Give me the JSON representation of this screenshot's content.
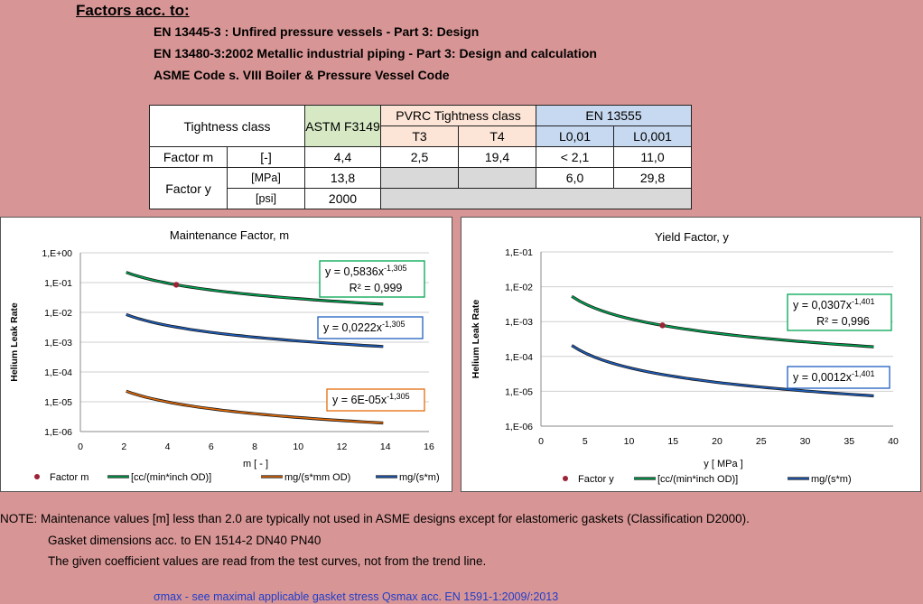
{
  "header": {
    "title": "Factors acc. to:",
    "standards": [
      "EN 13445-3 : Unfired pressure vessels - Part 3: Design",
      "EN 13480-3:2002 Metallic industrial piping - Part 3: Design and calculation",
      "ASME Code s. VIII Boiler & Pressure Vessel Code"
    ]
  },
  "table": {
    "tightness_class": "Tightness class",
    "astm": "ASTM F3149",
    "pvrc": "PVRC Tightness class",
    "en13555": "EN 13555",
    "t3": "T3",
    "t4": "T4",
    "l001": "L0,01",
    "l0001": "L0,001",
    "factor_m": "Factor m",
    "unit_dash": "[-]",
    "factor_y": "Factor y",
    "unit_mpa": "[MPa]",
    "unit_psi": "[psi]",
    "m_values": [
      "4,4",
      "2,5",
      "19,4",
      "< 2,1",
      "11,0"
    ],
    "y_mpa_values": [
      "13,8",
      "",
      "",
      "6,0",
      "29,8"
    ],
    "y_psi_value": "2000",
    "colors": {
      "astm": "#d6e9c4",
      "pvrc": "#fce4d6",
      "en13555": "#c6d9f0",
      "empty": "#d9d9d9"
    }
  },
  "chart_data": [
    {
      "type": "line",
      "title": "Maintenance Factor, m",
      "xlabel": "m  [ - ]",
      "ylabel": "Helium Leak Rate",
      "xlim": [
        0,
        16
      ],
      "ylim_log10": [
        -6,
        0
      ],
      "log_y": true,
      "grid": true,
      "x_ticks": [
        "0",
        "2",
        "4",
        "6",
        "8",
        "10",
        "12",
        "14",
        "16"
      ],
      "y_ticks": [
        "1,E-06",
        "1,E-05",
        "1,E-04",
        "1,E-03",
        "1,E-02",
        "1,E-01",
        "1,E+00"
      ],
      "series": [
        {
          "name": "[cc/(min*inch OD)]",
          "color": "#00a651",
          "kind": "curve",
          "coef": 0.5836,
          "exp": -1.305,
          "x_range": [
            2.1,
            13.9
          ]
        },
        {
          "name": "mg/(s*mm OD)",
          "color": "#e46c0a",
          "kind": "curve",
          "coef": 6e-05,
          "exp": -1.305,
          "x_range": [
            2.1,
            13.9
          ]
        },
        {
          "name": "mg/(s*m)",
          "color": "#1f5fbf",
          "kind": "curve",
          "coef": 0.0222,
          "exp": -1.305,
          "x_range": [
            2.1,
            13.9
          ]
        }
      ],
      "point": {
        "name": "Factor m",
        "x": 4.4,
        "y": 0.0845,
        "color": "#9b2335"
      },
      "annotations": [
        {
          "coef": "y = 0,5836x",
          "exp": "-1,305",
          "r2": "R² = 0,999",
          "color": "#00a651"
        },
        {
          "coef": "y = 0,0222x",
          "exp": "-1,305",
          "color": "#1f5fbf"
        },
        {
          "coef": "y = 6E-05x",
          "exp": "-1,305",
          "color": "#e46c0a"
        }
      ],
      "legend": {
        "placement": "bottom"
      }
    },
    {
      "type": "line",
      "title": "Yield Factor, y",
      "xlabel": "y  [ MPa ]",
      "ylabel": "Helium Leak Rate",
      "xlim": [
        0,
        40
      ],
      "ylim_log10": [
        -6,
        -1
      ],
      "log_y": true,
      "grid": true,
      "x_ticks": [
        "0",
        "5",
        "10",
        "15",
        "20",
        "25",
        "30",
        "35",
        "40"
      ],
      "y_ticks": [
        "1,E-06",
        "1,E-05",
        "1,E-04",
        "1,E-03",
        "1,E-02",
        "1,E-01"
      ],
      "series": [
        {
          "name": "[cc/(min*inch OD)]",
          "color": "#00a651",
          "kind": "curve",
          "coef": 0.0307,
          "exp": -1.401,
          "x_range": [
            3.5,
            37.8
          ]
        },
        {
          "name": "mg/(s*m)",
          "color": "#1f5fbf",
          "kind": "curve",
          "coef": 0.0012,
          "exp": -1.401,
          "x_range": [
            3.5,
            37.8
          ]
        }
      ],
      "point": {
        "name": "Factor y",
        "x": 13.8,
        "y": 0.00078,
        "color": "#9b2335"
      },
      "annotations": [
        {
          "coef": "y = 0,0307x",
          "exp": "-1,401",
          "r2": "R² = 0,996",
          "color": "#00a651"
        },
        {
          "coef": "y = 0,0012x",
          "exp": "-1,401",
          "color": "#1f5fbf"
        }
      ],
      "legend": {
        "placement": "bottom"
      }
    }
  ],
  "notes": [
    "NOTE: Maintenance values [m] less than 2.0 are typically not used in ASME designs except for elastomeric gaskets (Classification D2000).",
    "Gasket dimensions acc. to      EN 1514-2   DN40 PN40",
    "The given coefficient values are read from the test curves, not from the trend line."
  ],
  "link": "σmax - see maximal applicable gasket stress Qsmax acc. EN 1591-1:2009/:2013"
}
